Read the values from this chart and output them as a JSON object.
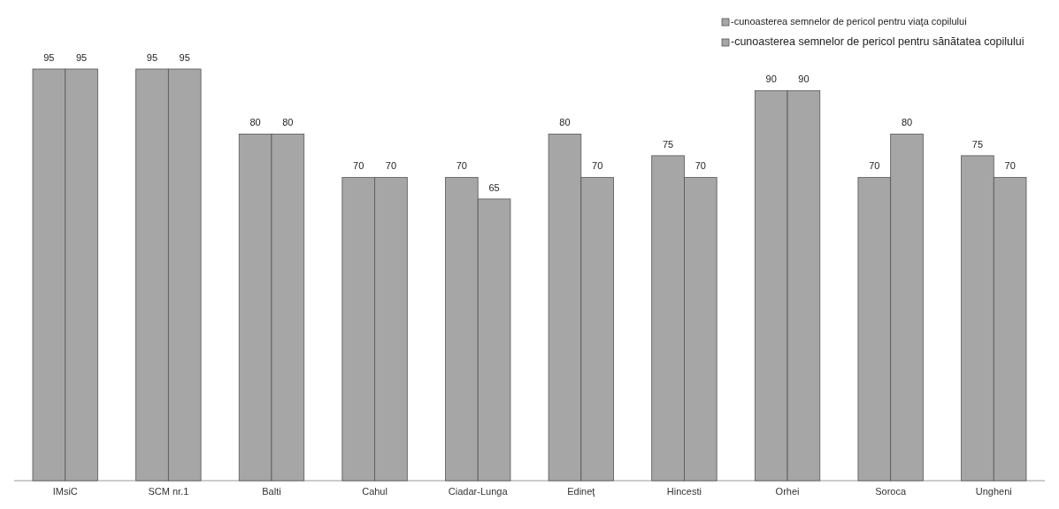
{
  "chart_data": {
    "type": "bar",
    "categories": [
      "IMsiC",
      "SCM nr.1",
      "Balti",
      "Cahul",
      "Ciadar-Lunga",
      "Edineţ",
      "Hincesti",
      "Orhei",
      "Soroca",
      "Ungheni"
    ],
    "series": [
      {
        "name": "-cunoasterea semnelor de pericol pentru viaţa copilului",
        "color": "#a6a6a6",
        "values": [
          95,
          95,
          80,
          70,
          70,
          80,
          75,
          90,
          70,
          75
        ]
      },
      {
        "name": "-cunoasterea semnelor de pericol pentru sănătatea copilului",
        "color": "#a6a6a6",
        "values": [
          95,
          95,
          80,
          70,
          65,
          70,
          70,
          90,
          80,
          70
        ]
      }
    ],
    "data_labels": true,
    "legend": "top right"
  }
}
